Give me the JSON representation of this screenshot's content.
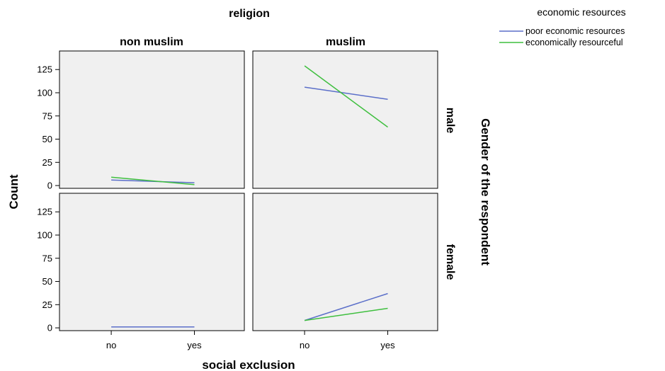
{
  "chart_data": {
    "type": "line",
    "title": "religion",
    "xlabel": "social exclusion",
    "ylabel": "Count",
    "row_panel_label": "Gender of the respondent",
    "columns": [
      "non muslim",
      "muslim"
    ],
    "rows": [
      "male",
      "female"
    ],
    "categories": [
      "no",
      "yes"
    ],
    "yticks": [
      0,
      25,
      50,
      75,
      100,
      125
    ],
    "ylim": [
      -3,
      145
    ],
    "grid": false,
    "legend": {
      "title": "economic resources",
      "placement": "top-right",
      "items": [
        {
          "name": "poor economic resources",
          "color": "#5b6fc9"
        },
        {
          "name": "economically resourceful",
          "color": "#3fbf3f"
        }
      ]
    },
    "panels": [
      {
        "row": "male",
        "column": "non muslim",
        "series": [
          {
            "name": "poor economic resources",
            "values": [
              6,
              3
            ]
          },
          {
            "name": "economically resourceful",
            "values": [
              9,
              1
            ]
          }
        ]
      },
      {
        "row": "male",
        "column": "muslim",
        "series": [
          {
            "name": "poor economic resources",
            "values": [
              106,
              93
            ]
          },
          {
            "name": "economically resourceful",
            "values": [
              129,
              63
            ]
          }
        ]
      },
      {
        "row": "female",
        "column": "non muslim",
        "series": [
          {
            "name": "poor economic resources",
            "values": [
              1,
              1
            ]
          }
        ]
      },
      {
        "row": "female",
        "column": "muslim",
        "series": [
          {
            "name": "poor economic resources",
            "values": [
              8,
              37
            ]
          },
          {
            "name": "economically resourceful",
            "values": [
              8,
              21
            ]
          }
        ]
      }
    ]
  }
}
